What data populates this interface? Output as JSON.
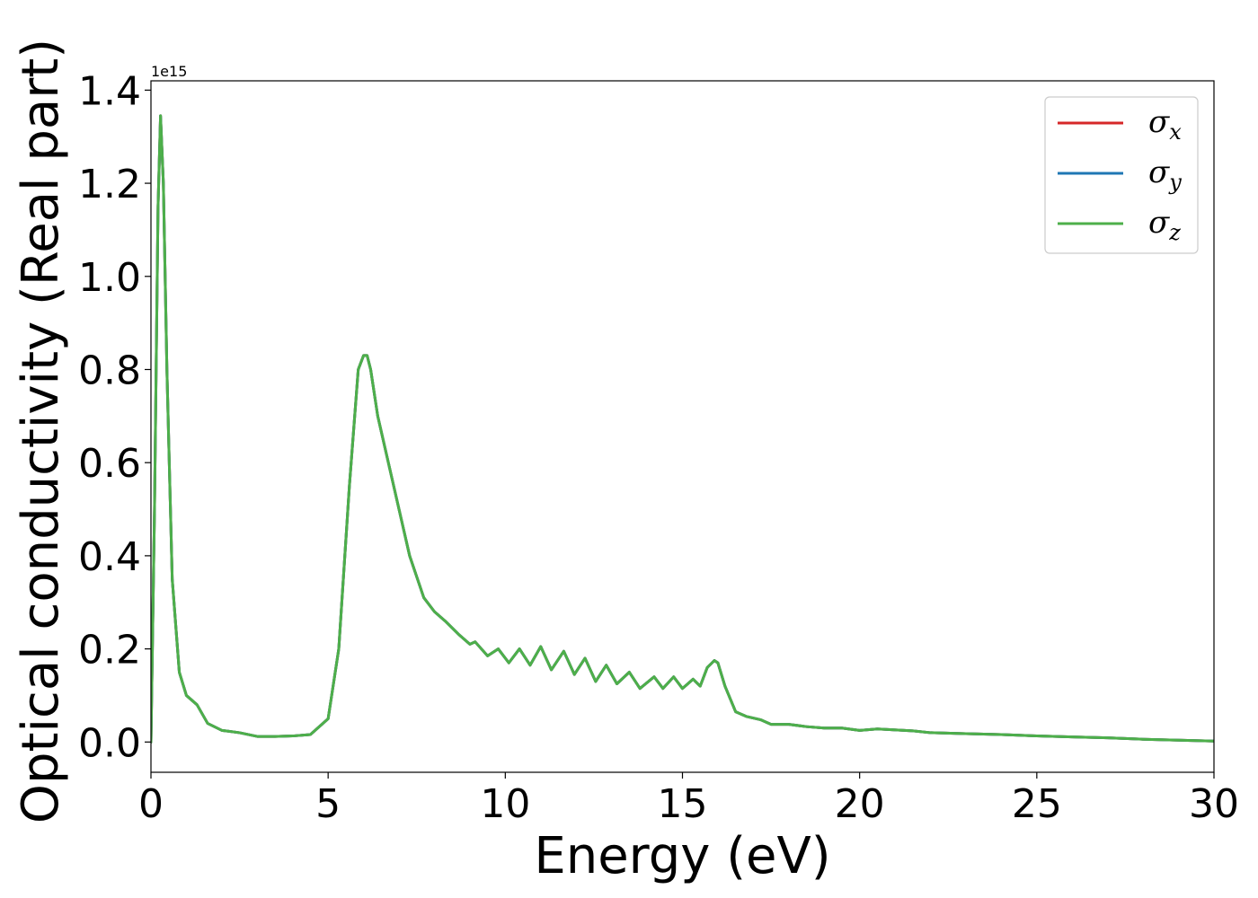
{
  "chart_data": {
    "type": "line",
    "title": "",
    "xlabel": "Energy (eV)",
    "ylabel": "Optical conductivity (Real part)",
    "y_offset_text": "1e15",
    "xlim": [
      0,
      30
    ],
    "ylim": [
      -0.065,
      1.42
    ],
    "x_ticks": [
      0,
      5,
      10,
      15,
      20,
      25,
      30
    ],
    "x_tick_labels": [
      "0",
      "5",
      "10",
      "15",
      "20",
      "25",
      "30"
    ],
    "y_ticks": [
      0.0,
      0.2,
      0.4,
      0.6,
      0.8,
      1.0,
      1.2,
      1.4
    ],
    "y_tick_labels": [
      "0.0",
      "0.2",
      "0.4",
      "0.6",
      "0.8",
      "1.0",
      "1.2",
      "1.4"
    ],
    "grid": false,
    "legend_position": "top-right",
    "series": [
      {
        "name": "σx",
        "symbol": "σ",
        "subscript": "x",
        "color": "#d62728"
      },
      {
        "name": "σy",
        "symbol": "σ",
        "subscript": "y",
        "color": "#1f77b4"
      },
      {
        "name": "σz",
        "symbol": "σ",
        "subscript": "z",
        "color": "#4daf4a"
      }
    ],
    "x": [
      0,
      0.1,
      0.2,
      0.27,
      0.35,
      0.45,
      0.6,
      0.8,
      1.0,
      1.3,
      1.6,
      2.0,
      2.5,
      3.0,
      3.5,
      4.0,
      4.5,
      5.0,
      5.3,
      5.6,
      5.85,
      6.0,
      6.1,
      6.2,
      6.4,
      6.7,
      7.0,
      7.3,
      7.7,
      8.0,
      8.3,
      8.7,
      9.0,
      9.15,
      9.5,
      9.8,
      10.1,
      10.4,
      10.7,
      11.0,
      11.3,
      11.65,
      11.95,
      12.25,
      12.55,
      12.85,
      13.15,
      13.5,
      13.8,
      14.2,
      14.45,
      14.75,
      15.0,
      15.3,
      15.5,
      15.7,
      15.9,
      16.0,
      16.2,
      16.5,
      16.8,
      17.2,
      17.5,
      18.0,
      18.5,
      19.0,
      19.5,
      20.0,
      20.5,
      21.5,
      22.0,
      23.0,
      24.0,
      25.0,
      26.0,
      27.0,
      28.0,
      29.0,
      30.0
    ],
    "values": [
      0,
      0.5,
      1.15,
      1.345,
      1.2,
      0.8,
      0.35,
      0.15,
      0.1,
      0.08,
      0.04,
      0.025,
      0.02,
      0.012,
      0.012,
      0.013,
      0.016,
      0.05,
      0.2,
      0.55,
      0.8,
      0.83,
      0.83,
      0.8,
      0.7,
      0.6,
      0.5,
      0.4,
      0.31,
      0.28,
      0.26,
      0.23,
      0.21,
      0.215,
      0.185,
      0.2,
      0.17,
      0.2,
      0.165,
      0.205,
      0.155,
      0.195,
      0.145,
      0.18,
      0.13,
      0.165,
      0.125,
      0.15,
      0.115,
      0.14,
      0.115,
      0.14,
      0.115,
      0.135,
      0.12,
      0.16,
      0.175,
      0.17,
      0.12,
      0.065,
      0.055,
      0.048,
      0.038,
      0.038,
      0.033,
      0.03,
      0.03,
      0.025,
      0.028,
      0.024,
      0.02,
      0.018,
      0.016,
      0.013,
      0.011,
      0.009,
      0.006,
      0.004,
      0.002
    ]
  }
}
